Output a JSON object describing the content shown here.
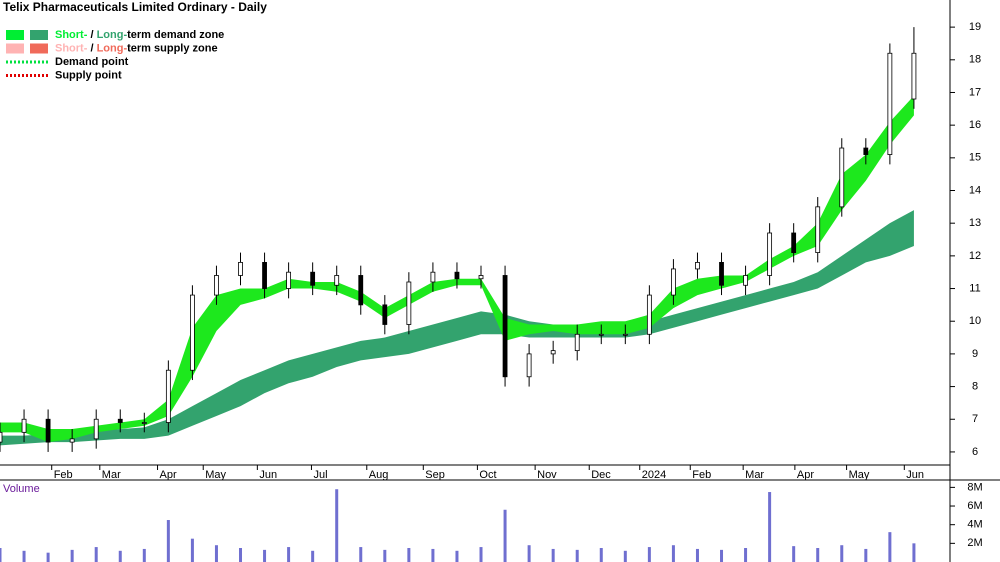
{
  "chart_data": [
    {
      "type": "candlestick",
      "title": "Telix Pharmaceuticals Limited Ordinary - Daily",
      "x": [
        0,
        2,
        4,
        6,
        8,
        10,
        12,
        14,
        16,
        18,
        20,
        22,
        24,
        26,
        28,
        30,
        32,
        34,
        36,
        38,
        40,
        42,
        44,
        46,
        48,
        50,
        52,
        54,
        56,
        58,
        60,
        62,
        64,
        66,
        68,
        70,
        72,
        74,
        76
      ],
      "xlim": [
        0,
        79
      ],
      "xticks": [
        {
          "value": 4.3,
          "label": "Feb"
        },
        {
          "value": 8.3,
          "label": "Mar"
        },
        {
          "value": 13.1,
          "label": "Apr"
        },
        {
          "value": 16.9,
          "label": "May"
        },
        {
          "value": 21.4,
          "label": "Jun"
        },
        {
          "value": 25.9,
          "label": "Jul"
        },
        {
          "value": 30.5,
          "label": "Aug"
        },
        {
          "value": 35.2,
          "label": "Sep"
        },
        {
          "value": 39.7,
          "label": "Oct"
        },
        {
          "value": 44.5,
          "label": "Nov"
        },
        {
          "value": 49,
          "label": "Dec"
        },
        {
          "value": 53.2,
          "label": "2024"
        },
        {
          "value": 57.4,
          "label": "Feb"
        },
        {
          "value": 61.8,
          "label": "Mar"
        },
        {
          "value": 66.1,
          "label": "Apr"
        },
        {
          "value": 70.4,
          "label": "May"
        },
        {
          "value": 75.2,
          "label": "Jun"
        }
      ],
      "ylim": [
        5.6,
        19.83
      ],
      "yticks": [
        6,
        7,
        8,
        9,
        10,
        11,
        12,
        13,
        14,
        15,
        16,
        17,
        18,
        19
      ],
      "open": [
        6.3,
        6.6,
        7.0,
        6.3,
        6.4,
        7.0,
        6.9,
        6.9,
        8.5,
        10.8,
        11.4,
        11.8,
        11.0,
        11.5,
        11.1,
        11.4,
        10.5,
        9.9,
        11.2,
        11.5,
        11.3,
        11.4,
        8.3,
        9.0,
        9.1,
        9.6,
        9.6,
        9.6,
        10.8,
        11.6,
        11.8,
        11.1,
        11.4,
        12.7,
        12.1,
        13.5,
        15.3,
        15.1,
        16.8
      ],
      "high": [
        6.9,
        7.3,
        7.3,
        6.7,
        7.3,
        7.3,
        7.2,
        8.8,
        11.1,
        11.7,
        12.1,
        12.1,
        11.8,
        11.8,
        11.7,
        11.7,
        10.8,
        11.5,
        11.8,
        11.8,
        11.7,
        11.7,
        9.3,
        9.4,
        9.9,
        9.9,
        9.9,
        11.1,
        11.9,
        12.1,
        12.1,
        11.7,
        13.0,
        13.0,
        13.8,
        15.6,
        15.6,
        18.5,
        19.0
      ],
      "low": [
        6.0,
        6.3,
        6.0,
        6.0,
        6.1,
        6.6,
        6.6,
        6.6,
        8.2,
        10.5,
        11.1,
        10.7,
        10.7,
        10.8,
        10.8,
        10.2,
        9.6,
        9.6,
        10.9,
        11.0,
        11.0,
        8.0,
        8.0,
        8.7,
        8.8,
        9.3,
        9.3,
        9.3,
        10.5,
        11.3,
        10.8,
        10.8,
        11.1,
        11.8,
        11.8,
        13.2,
        14.8,
        14.8,
        16.5
      ],
      "close": [
        6.6,
        7.0,
        6.3,
        6.4,
        7.0,
        6.9,
        6.9,
        8.5,
        10.8,
        11.4,
        11.8,
        11.0,
        11.5,
        11.1,
        11.4,
        10.5,
        9.9,
        11.2,
        11.5,
        11.3,
        11.4,
        8.3,
        9.0,
        9.1,
        9.6,
        9.6,
        9.6,
        10.8,
        11.6,
        11.8,
        11.1,
        11.4,
        12.7,
        12.1,
        13.5,
        15.3,
        15.1,
        18.2,
        18.2
      ],
      "zones": [
        {
          "color": "#33a36e",
          "upper": [
            6.5,
            6.5,
            6.55,
            6.6,
            6.65,
            6.7,
            6.75,
            7.0,
            7.4,
            7.8,
            8.2,
            8.5,
            8.8,
            9.0,
            9.2,
            9.4,
            9.5,
            9.7,
            9.9,
            10.1,
            10.3,
            10.2,
            10.0,
            9.9,
            9.9,
            9.9,
            9.9,
            10.0,
            10.2,
            10.4,
            10.6,
            10.8,
            11.0,
            11.2,
            11.5,
            12.0,
            12.5,
            13.0,
            13.4
          ],
          "lower": [
            6.2,
            6.25,
            6.3,
            6.3,
            6.35,
            6.4,
            6.4,
            6.5,
            6.8,
            7.1,
            7.4,
            7.8,
            8.1,
            8.3,
            8.6,
            8.8,
            8.9,
            9.0,
            9.2,
            9.4,
            9.6,
            9.6,
            9.5,
            9.5,
            9.5,
            9.5,
            9.5,
            9.6,
            9.8,
            10.0,
            10.2,
            10.4,
            10.6,
            10.8,
            11.0,
            11.4,
            11.8,
            12.0,
            12.3
          ]
        },
        {
          "color": "#1de81d",
          "upper": [
            6.9,
            6.9,
            6.7,
            6.7,
            6.8,
            6.9,
            7.0,
            7.6,
            9.8,
            10.8,
            11.0,
            11.0,
            11.3,
            11.2,
            11.2,
            10.9,
            10.4,
            10.8,
            11.2,
            11.3,
            11.3,
            10.1,
            9.9,
            9.9,
            9.9,
            10.0,
            10.0,
            10.2,
            11.0,
            11.3,
            11.4,
            11.4,
            11.9,
            12.3,
            13.0,
            14.5,
            15.1,
            16.1,
            16.9
          ],
          "lower": [
            6.6,
            6.6,
            6.3,
            6.4,
            6.6,
            6.7,
            6.8,
            7.1,
            8.3,
            9.7,
            10.5,
            10.7,
            11.0,
            11.0,
            10.9,
            10.6,
            10.1,
            10.5,
            10.9,
            11.1,
            11.1,
            9.4,
            9.6,
            9.7,
            9.6,
            9.6,
            9.6,
            9.8,
            10.4,
            10.8,
            11.0,
            11.2,
            11.6,
            12.0,
            12.3,
            13.4,
            14.3,
            15.4,
            16.3
          ]
        }
      ],
      "legend": [
        {
          "short": "Short-",
          "sep": " / ",
          "long": "Long-",
          "text": "term demand zone",
          "colors": [
            "#00ee33",
            "#33a36e"
          ]
        },
        {
          "short": "Short-",
          "sep": " / ",
          "long": "Long-",
          "text": "term supply zone",
          "colors": [
            "#ffb3b3",
            "#f06a5a"
          ]
        },
        {
          "text": "Demand point",
          "color": "#00e040"
        },
        {
          "text": "Supply point",
          "color": "#e00000"
        }
      ]
    },
    {
      "type": "bar",
      "title": "Volume",
      "color": "#6f6fd0",
      "x": [
        0,
        2,
        4,
        6,
        8,
        10,
        12,
        14,
        16,
        18,
        20,
        22,
        24,
        26,
        28,
        30,
        32,
        34,
        36,
        38,
        40,
        42,
        44,
        46,
        48,
        50,
        52,
        54,
        56,
        58,
        60,
        62,
        64,
        66,
        68,
        70,
        72,
        74,
        76
      ],
      "xlim": [
        0,
        79
      ],
      "values": [
        1500000,
        1200000,
        1000000,
        1300000,
        1600000,
        1200000,
        1400000,
        4500000,
        2500000,
        1800000,
        1500000,
        1300000,
        1600000,
        1200000,
        7800000,
        1600000,
        1300000,
        1500000,
        1400000,
        1200000,
        1600000,
        5600000,
        1800000,
        1400000,
        1300000,
        1500000,
        1200000,
        1600000,
        1800000,
        1400000,
        1300000,
        1500000,
        7500000,
        1700000,
        1500000,
        1800000,
        1400000,
        3200000,
        2000000
      ],
      "ylim": [
        0,
        8790000
      ],
      "yticks": [
        {
          "value": 2000000,
          "label": "2M"
        },
        {
          "value": 4000000,
          "label": "4M"
        },
        {
          "value": 6000000,
          "label": "6M"
        },
        {
          "value": 8000000,
          "label": "8M"
        }
      ]
    }
  ]
}
